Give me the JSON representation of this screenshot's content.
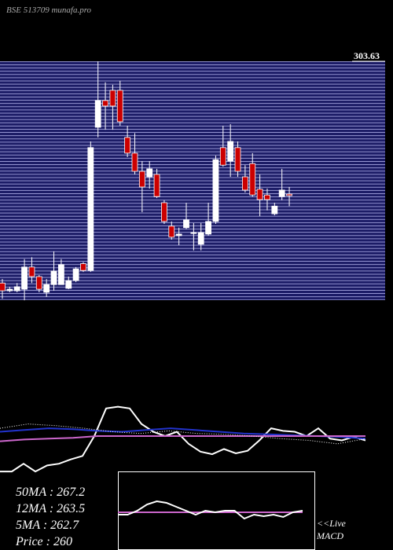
{
  "chart_data": [
    {
      "type": "candlestick",
      "title": "BSE 513709 munafa.pro",
      "open": [
        231.6,
        229.1,
        229.1,
        229.6,
        236.8,
        233.7,
        228.6,
        231.1,
        231.1,
        229.9,
        232.4,
        237.9,
        235.7,
        282.2,
        290.9,
        294.2,
        294.2,
        278.9,
        273.8,
        267.9,
        266.1,
        266.9,
        257.7,
        250.1,
        247.0,
        249.6,
        247.7,
        244.2,
        247.5,
        251.6,
        275.6,
        271.2,
        275.6,
        266.1,
        270.4,
        262.1,
        260.2,
        254.1,
        259.7,
        260.5
      ],
      "high": [
        232.9,
        230.4,
        231.6,
        239.4,
        240.0,
        234.2,
        232.9,
        241.9,
        239.4,
        233.7,
        236.8,
        238.4,
        277.6,
        303.6,
        296.8,
        296.0,
        297.3,
        282.7,
        280.3,
        271.2,
        271.2,
        268.7,
        258.5,
        251.6,
        249.6,
        257.7,
        251.1,
        251.1,
        257.7,
        273.0,
        282.7,
        283.2,
        277.6,
        269.9,
        273.8,
        266.9,
        262.3,
        257.7,
        268.7,
        262.8
      ],
      "low": [
        226.5,
        228.6,
        228.6,
        226.0,
        231.6,
        228.6,
        227.1,
        229.1,
        231.1,
        229.6,
        231.9,
        235.2,
        235.2,
        278.9,
        281.4,
        281.4,
        282.7,
        272.5,
        266.9,
        254.6,
        262.3,
        259.2,
        250.8,
        245.7,
        243.9,
        249.1,
        242.2,
        242.2,
        247.0,
        250.8,
        269.4,
        266.1,
        266.1,
        261.0,
        259.7,
        253.3,
        255.2,
        253.6,
        258.5,
        256.6
      ],
      "close": [
        229.1,
        229.6,
        230.4,
        236.8,
        233.7,
        229.6,
        231.1,
        235.5,
        237.6,
        232.4,
        236.2,
        235.7,
        275.6,
        290.9,
        289.1,
        289.1,
        284.0,
        273.8,
        267.9,
        262.8,
        268.7,
        259.7,
        251.6,
        246.5,
        247.5,
        252.1,
        248.0,
        248.0,
        251.6,
        271.7,
        269.9,
        277.6,
        267.9,
        261.8,
        260.2,
        258.7,
        258.7,
        256.6,
        261.8,
        260.0
      ],
      "up_color": "#ffffff",
      "down_color": "#cc0000",
      "ylim": [
        226.05,
        303.63
      ],
      "yticks": [
        303.63
      ]
    },
    {
      "type": "line",
      "annotations": [
        "50MA : 267.2",
        "12MA : 263.5",
        "5MA : 262.7",
        "Price   : 260"
      ],
      "series": [
        {
          "color": "#ffffff",
          "style": "solid",
          "values": [
            9,
            9,
            18,
            9,
            16,
            18,
            23,
            27,
            50,
            82,
            84,
            82,
            64,
            55,
            50,
            55,
            41,
            32,
            29,
            35,
            30,
            33,
            45,
            59,
            56,
            55,
            50,
            59,
            47,
            45,
            49,
            45
          ]
        },
        {
          "color": "#2233cc",
          "style": "solid",
          "values": [
            55,
            57,
            59,
            58,
            56,
            55,
            57,
            59,
            57,
            55,
            53,
            52,
            51,
            50,
            49,
            47
          ]
        },
        {
          "color": "#cc66cc",
          "style": "solid",
          "values": [
            44,
            46,
            47,
            48,
            50,
            50,
            50,
            50,
            50,
            50,
            50,
            50,
            50,
            50,
            50,
            50
          ]
        },
        {
          "color": "#ffffff",
          "style": "dotted",
          "values": [
            59,
            64,
            62,
            59,
            55,
            53,
            56,
            53,
            52,
            50,
            47,
            45,
            41,
            47
          ]
        }
      ],
      "ylim": [
        0,
        100
      ]
    },
    {
      "type": "line",
      "title": "MACD",
      "label": "<<Live",
      "series": [
        {
          "color": "#cc66cc",
          "style": "solid",
          "values": [
            48,
            48,
            48,
            48,
            48,
            48,
            48,
            48,
            48,
            48,
            48,
            48,
            48,
            48,
            48,
            48,
            48,
            48,
            48,
            48
          ]
        },
        {
          "color": "#ffffff",
          "style": "solid",
          "values": [
            45,
            45,
            50,
            58,
            62,
            60,
            55,
            50,
            45,
            50,
            48,
            50,
            50,
            40,
            45,
            43,
            45,
            42,
            48,
            50
          ]
        }
      ],
      "ylim": [
        0,
        100
      ]
    }
  ]
}
